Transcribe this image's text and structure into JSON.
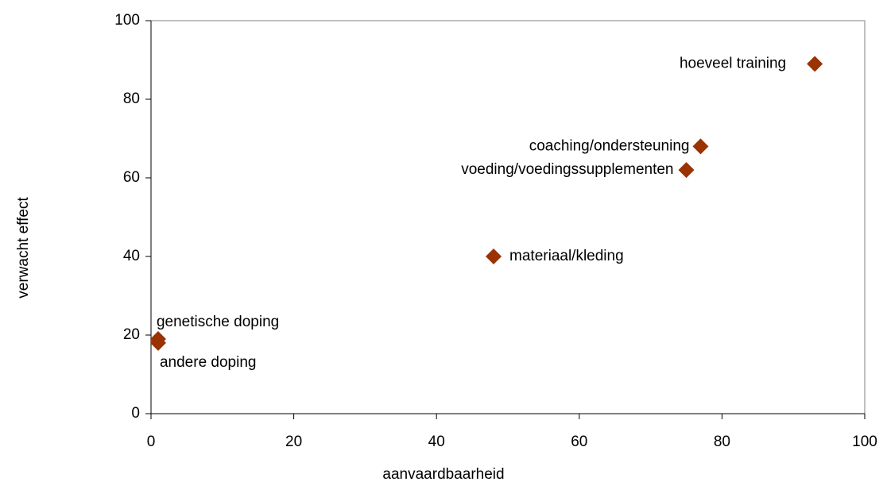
{
  "chart_data": {
    "type": "scatter",
    "xlabel": "aanvaardbaarheid",
    "ylabel": "verwacht effect",
    "x": [
      93,
      77,
      75,
      48,
      1,
      1
    ],
    "values": [
      89,
      68,
      62,
      40,
      19,
      18
    ],
    "labels": [
      "hoeveel training",
      "coaching/ondersteuning",
      "voeding/voedingssupplementen",
      "materiaal/kleding",
      "genetische doping",
      "andere doping"
    ],
    "color": "#993300",
    "xlim": [
      0,
      100
    ],
    "xticks": [
      0,
      20,
      40,
      60,
      80,
      100
    ],
    "ylim": [
      0,
      100
    ],
    "yticks": [
      0,
      20,
      40,
      60,
      80,
      100
    ],
    "grid": false
  }
}
